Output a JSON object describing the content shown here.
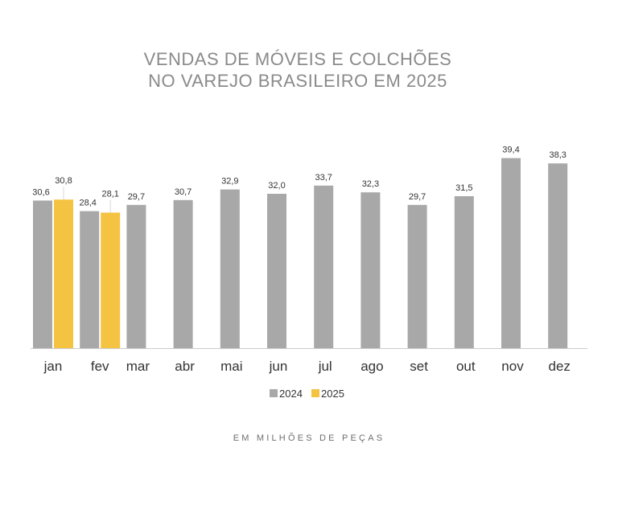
{
  "title": {
    "line1": "VENDAS DE MÓVEIS E COLCHÕES",
    "line2": "NO VAREJO BRASILEIRO EM 2025"
  },
  "footnote": "EM MILHÕES DE PEÇAS",
  "colors": {
    "series_2024": "#a8a8a8",
    "series_2025": "#f5c342",
    "axis": "#cccccc",
    "title": "#8a8a8a"
  },
  "chart_data": {
    "type": "bar",
    "categories": [
      "jan",
      "fev",
      "mar",
      "abr",
      "mai",
      "jun",
      "jul",
      "ago",
      "set",
      "out",
      "nov",
      "dez"
    ],
    "series": [
      {
        "name": "2024",
        "values": [
          30.6,
          28.4,
          29.7,
          30.7,
          32.9,
          32.0,
          33.7,
          32.3,
          29.7,
          31.5,
          39.4,
          38.3
        ],
        "labels": [
          "30,6",
          "28,4",
          "29,7",
          "30,7",
          "32,9",
          "32,0",
          "33,7",
          "32,3",
          "29,7",
          "31,5",
          "39,4",
          "38,3"
        ]
      },
      {
        "name": "2025",
        "values": [
          30.8,
          28.1,
          null,
          null,
          null,
          null,
          null,
          null,
          null,
          null,
          null,
          null
        ],
        "labels": [
          "30,8",
          "28,1",
          "",
          "",
          "",
          "",
          "",
          "",
          "",
          "",
          "",
          ""
        ]
      }
    ],
    "title": "VENDAS DE MÓVEIS E COLCHÕES NO VAREJO BRASILEIRO EM 2025",
    "xlabel": "",
    "ylabel": "",
    "ylim": [
      0,
      40
    ],
    "grid": false,
    "legend": {
      "position": "bottom-center",
      "entries": [
        "2024",
        "2025"
      ]
    }
  }
}
